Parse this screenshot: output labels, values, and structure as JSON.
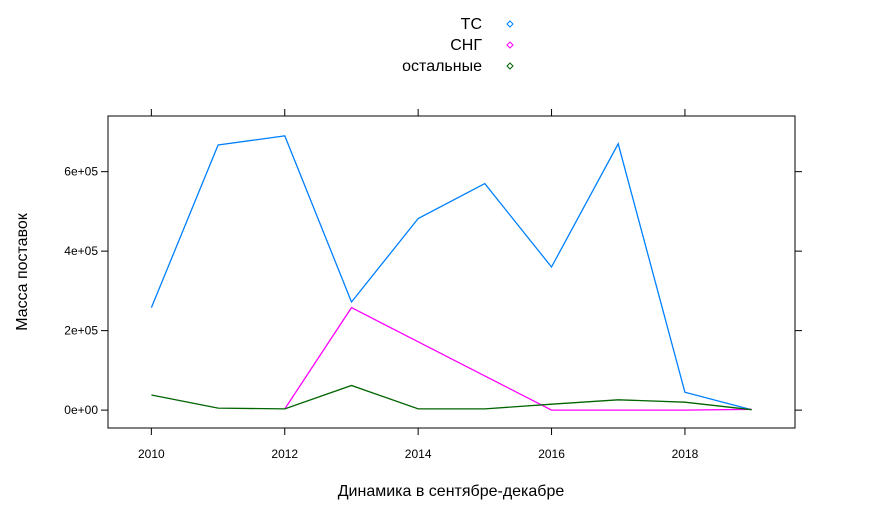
{
  "chart_data": {
    "type": "line",
    "title": "",
    "xlabel": "Динамика в сентябре-декабре",
    "ylabel": "Масса поставок",
    "x": [
      2010,
      2011,
      2012,
      2013,
      2014,
      2015,
      2016,
      2017,
      2018,
      2019
    ],
    "xlim": [
      2009.35,
      2019.65
    ],
    "ylim": [
      -45000,
      740000
    ],
    "xticks": [
      2010,
      2012,
      2014,
      2016,
      2018
    ],
    "xtick_labels": [
      "2010",
      "2012",
      "2014",
      "2016",
      "2018"
    ],
    "yticks": [
      0,
      200000,
      400000,
      600000
    ],
    "ytick_labels": [
      "0e+00",
      "2e+05",
      "4e+05",
      "6e+05"
    ],
    "grid": false,
    "legend_position": "top",
    "series": [
      {
        "name": "ТС",
        "color": "#0080ff",
        "values": [
          258000,
          667000,
          690000,
          272000,
          482000,
          570000,
          360000,
          670000,
          45000,
          1000
        ]
      },
      {
        "name": "СНГ",
        "color": "#ff00ff",
        "values": [
          null,
          null,
          3000,
          258000,
          172000,
          86000,
          0,
          0,
          0,
          2000
        ]
      },
      {
        "name": "остальные",
        "color": "#006400",
        "values": [
          38000,
          5000,
          3000,
          62000,
          3000,
          3000,
          15000,
          26000,
          20000,
          1000
        ]
      }
    ]
  }
}
